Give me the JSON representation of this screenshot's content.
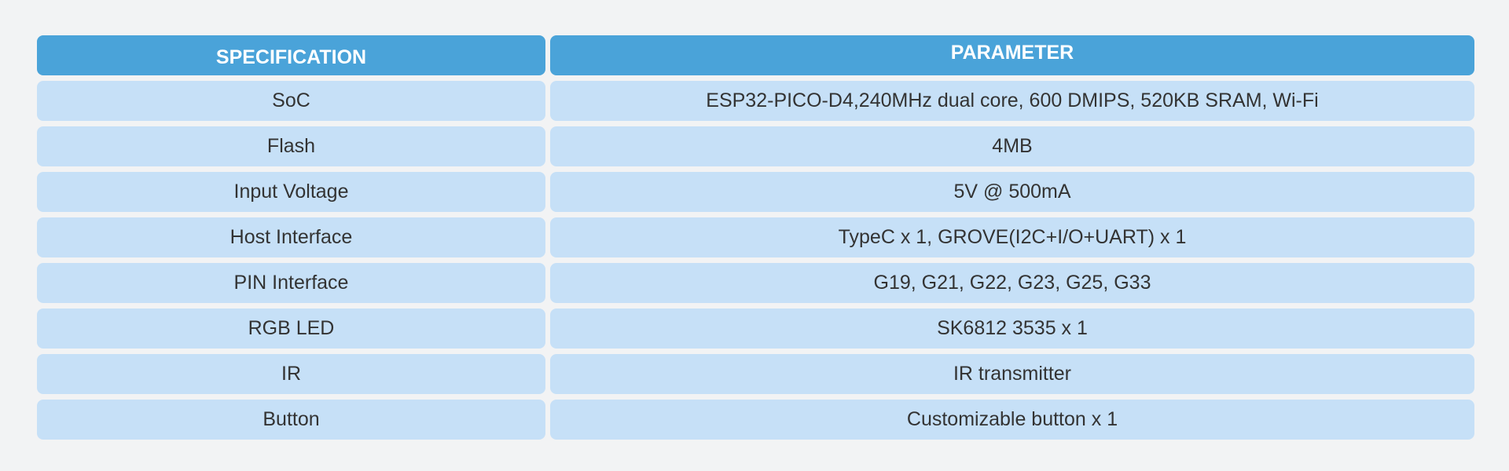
{
  "table": {
    "headers": [
      "SPECIFICATION",
      "PARAMETER"
    ],
    "rows": [
      [
        "SoC",
        "ESP32-PICO-D4,240MHz dual core, 600 DMIPS, 520KB SRAM, Wi-Fi"
      ],
      [
        "Flash",
        "4MB"
      ],
      [
        "Input Voltage",
        "5V @ 500mA"
      ],
      [
        "Host Interface",
        "TypeC x 1, GROVE(I2C+I/O+UART) x 1"
      ],
      [
        "PIN Interface",
        "G19, G21, G22, G23, G25, G33"
      ],
      [
        "RGB LED",
        "SK6812 3535 x 1"
      ],
      [
        "IR",
        "IR transmitter"
      ],
      [
        "Button",
        "Customizable button x 1"
      ]
    ]
  },
  "colors": {
    "header": "#4aa3d9",
    "row": "#c6e0f7",
    "background": "#f2f3f4"
  }
}
